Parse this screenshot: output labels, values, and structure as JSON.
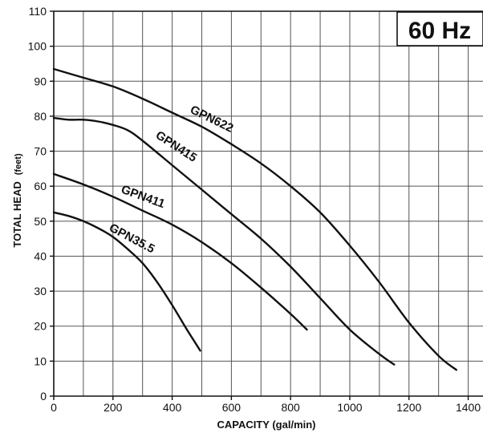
{
  "chart_data": {
    "type": "line",
    "title": "60 Hz",
    "xlabel": "CAPACITY (gal/min)",
    "ylabel": "TOTAL HEAD",
    "ylabel_unit": "(feet)",
    "xlim": [
      0,
      1450
    ],
    "ylim": [
      0,
      110
    ],
    "xticks": [
      0,
      200,
      400,
      600,
      800,
      1000,
      1200,
      1400
    ],
    "yticks": [
      0,
      10,
      20,
      30,
      40,
      50,
      60,
      70,
      80,
      90,
      100,
      110
    ],
    "grid": true,
    "series": [
      {
        "name": "GPN622",
        "x": [
          0,
          100,
          200,
          300,
          400,
          500,
          600,
          700,
          800,
          900,
          1000,
          1100,
          1200,
          1300,
          1360
        ],
        "y": [
          93.5,
          91,
          88.5,
          85,
          81,
          77,
          72,
          66.5,
          60,
          52.5,
          43,
          32.5,
          21,
          11.5,
          7.5
        ]
      },
      {
        "name": "GPN415",
        "x": [
          0,
          50,
          100,
          150,
          200,
          250,
          300,
          400,
          500,
          600,
          700,
          800,
          900,
          1000,
          1100,
          1150
        ],
        "y": [
          79.5,
          79,
          79,
          78.5,
          77.5,
          76,
          73,
          66,
          59,
          52,
          45,
          37,
          28,
          19,
          12,
          9
        ]
      },
      {
        "name": "GPN411",
        "x": [
          0,
          100,
          200,
          300,
          400,
          500,
          600,
          700,
          800,
          855
        ],
        "y": [
          63.5,
          60.5,
          57,
          53,
          49,
          44,
          38,
          31,
          23.5,
          19
        ]
      },
      {
        "name": "GPN35.5",
        "x": [
          0,
          50,
          100,
          150,
          200,
          250,
          300,
          350,
          400,
          450,
          495
        ],
        "y": [
          52.5,
          51.5,
          50,
          48,
          45.5,
          42,
          38,
          32.5,
          26,
          19,
          13
        ]
      }
    ]
  },
  "curve_labels": {
    "gpn622": "GPN622",
    "gpn415": "GPN415",
    "gpn411": "GPN411",
    "gpn355": "GPN35.5"
  }
}
